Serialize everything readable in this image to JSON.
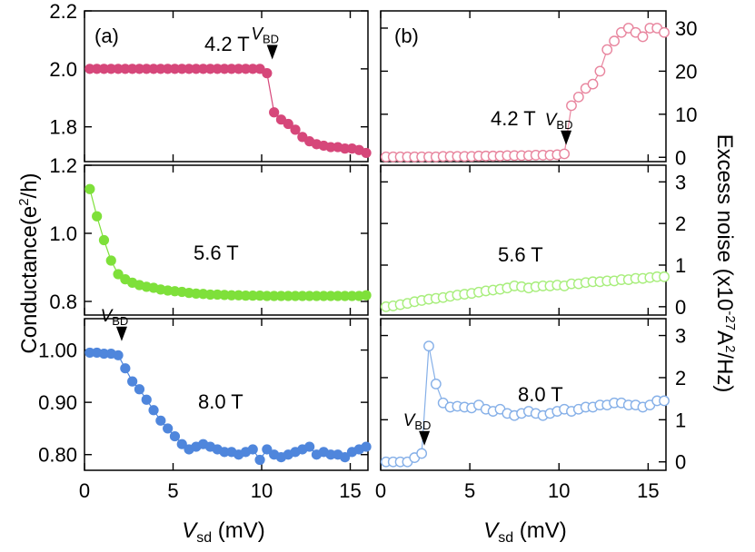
{
  "chart_data": [
    {
      "type": "scatter",
      "panel": "(a)",
      "field_label": "4.2 T",
      "xlabel": "V_sd (mV)",
      "ylabel": "Conductance (e^2/h)",
      "xlim": [
        0,
        16
      ],
      "ylim": [
        1.68,
        2.2
      ],
      "yticks": [
        1.8,
        2.0,
        2.2
      ],
      "ytick_labels": [
        "1.8",
        "2.0",
        "2.2"
      ],
      "color": "#d6477a",
      "marker": "filled-circle",
      "vbd": {
        "label": "V",
        "sub": "BD",
        "x": 10.6,
        "y": 2.02
      },
      "x": [
        0.3,
        0.7,
        1.1,
        1.5,
        1.9,
        2.3,
        2.7,
        3.1,
        3.5,
        3.9,
        4.3,
        4.7,
        5.1,
        5.5,
        5.9,
        6.3,
        6.7,
        7.1,
        7.5,
        7.9,
        8.3,
        8.7,
        9.1,
        9.5,
        9.9,
        10.3,
        10.7,
        11.1,
        11.5,
        11.9,
        12.3,
        12.7,
        13.1,
        13.5,
        13.9,
        14.3,
        14.7,
        15.1,
        15.5,
        15.9
      ],
      "y": [
        2.0,
        2.0,
        2.0,
        2.0,
        2.0,
        2.0,
        2.0,
        2.0,
        2.0,
        2.0,
        2.0,
        2.0,
        2.0,
        2.0,
        2.0,
        2.0,
        2.0,
        2.0,
        2.0,
        2.0,
        2.0,
        2.0,
        2.0,
        2.0,
        2.0,
        1.985,
        1.85,
        1.825,
        1.81,
        1.79,
        1.765,
        1.75,
        1.74,
        1.735,
        1.73,
        1.73,
        1.725,
        1.725,
        1.72,
        1.71
      ]
    },
    {
      "type": "scatter",
      "panel": "",
      "field_label": "5.6 T",
      "xlabel": "V_sd (mV)",
      "ylabel": "Conductance (e^2/h)",
      "xlim": [
        0,
        16
      ],
      "ylim": [
        0.76,
        1.2
      ],
      "yticks": [
        0.8,
        1.0,
        1.2
      ],
      "ytick_labels": [
        "0.8",
        "1.0",
        "1.2"
      ],
      "color": "#7ee03a",
      "marker": "filled-circle",
      "x": [
        0.3,
        0.7,
        1.1,
        1.5,
        1.9,
        2.3,
        2.7,
        3.1,
        3.5,
        3.9,
        4.3,
        4.7,
        5.1,
        5.5,
        5.9,
        6.3,
        6.7,
        7.1,
        7.5,
        7.9,
        8.3,
        8.7,
        9.1,
        9.5,
        9.9,
        10.3,
        10.7,
        11.1,
        11.5,
        11.9,
        12.3,
        12.7,
        13.1,
        13.5,
        13.9,
        14.3,
        14.7,
        15.1,
        15.5,
        15.9
      ],
      "y": [
        1.13,
        1.05,
        0.98,
        0.92,
        0.88,
        0.865,
        0.855,
        0.848,
        0.843,
        0.84,
        0.835,
        0.832,
        0.83,
        0.828,
        0.825,
        0.823,
        0.822,
        0.82,
        0.82,
        0.819,
        0.818,
        0.818,
        0.817,
        0.817,
        0.817,
        0.816,
        0.816,
        0.816,
        0.816,
        0.816,
        0.816,
        0.816,
        0.816,
        0.816,
        0.816,
        0.816,
        0.816,
        0.816,
        0.816,
        0.818
      ]
    },
    {
      "type": "scatter",
      "panel": "",
      "field_label": "8.0 T",
      "xlabel": "V_sd (mV)",
      "ylabel": "Conductance (e^2/h)",
      "xlim": [
        0,
        16
      ],
      "ylim": [
        0.77,
        1.06
      ],
      "yticks": [
        0.8,
        0.9,
        1.0
      ],
      "ytick_labels": [
        "0.80",
        "0.90",
        "1.00"
      ],
      "xticks": [
        0,
        5,
        10,
        15
      ],
      "xtick_labels": [
        "0",
        "5",
        "10",
        "15"
      ],
      "color": "#4f86dc",
      "marker": "filled-circle",
      "vbd": {
        "label": "V",
        "sub": "BD",
        "x": 2.1,
        "y": 1.01
      },
      "x": [
        0.3,
        0.7,
        1.1,
        1.5,
        1.9,
        2.3,
        2.7,
        3.1,
        3.5,
        3.9,
        4.3,
        4.7,
        5.1,
        5.5,
        5.9,
        6.3,
        6.7,
        7.1,
        7.5,
        7.9,
        8.3,
        8.7,
        9.1,
        9.5,
        9.9,
        10.3,
        10.7,
        11.1,
        11.5,
        11.9,
        12.3,
        12.7,
        13.1,
        13.5,
        13.9,
        14.3,
        14.7,
        15.1,
        15.5,
        15.9
      ],
      "y": [
        0.995,
        0.995,
        0.993,
        0.993,
        0.99,
        0.965,
        0.94,
        0.925,
        0.905,
        0.885,
        0.865,
        0.85,
        0.835,
        0.82,
        0.81,
        0.815,
        0.82,
        0.815,
        0.81,
        0.805,
        0.805,
        0.8,
        0.805,
        0.81,
        0.79,
        0.81,
        0.8,
        0.795,
        0.8,
        0.805,
        0.81,
        0.815,
        0.8,
        0.805,
        0.8,
        0.8,
        0.795,
        0.805,
        0.81,
        0.815
      ]
    },
    {
      "type": "scatter",
      "panel": "(b)",
      "field_label": "4.2 T",
      "xlabel": "V_sd (mV)",
      "ylabel": "Excess noise (x10^-27 A^2/Hz)",
      "xlim": [
        0,
        16
      ],
      "ylim": [
        -1,
        34
      ],
      "yticks": [
        0,
        10,
        20,
        30
      ],
      "ytick_labels": [
        "0",
        "10",
        "20",
        "30"
      ],
      "color": "#e8859e",
      "marker": "open-circle",
      "vbd": {
        "label": "V",
        "sub": "BD",
        "x": 10.4,
        "y": 2.0
      },
      "x": [
        0.3,
        0.7,
        1.1,
        1.5,
        1.9,
        2.3,
        2.7,
        3.1,
        3.5,
        3.9,
        4.3,
        4.7,
        5.1,
        5.5,
        5.9,
        6.3,
        6.7,
        7.1,
        7.5,
        7.9,
        8.3,
        8.7,
        9.1,
        9.5,
        9.9,
        10.3,
        10.7,
        11.1,
        11.5,
        11.9,
        12.3,
        12.7,
        13.1,
        13.5,
        13.9,
        14.3,
        14.7,
        15.1,
        15.5,
        15.9
      ],
      "y": [
        0.1,
        0.1,
        0.1,
        0.1,
        0.1,
        0.1,
        0.1,
        0.1,
        0.2,
        0.2,
        0.2,
        0.2,
        0.2,
        0.3,
        0.3,
        0.3,
        0.3,
        0.4,
        0.4,
        0.4,
        0.4,
        0.5,
        0.5,
        0.5,
        0.6,
        0.8,
        12,
        14,
        16,
        17,
        20,
        25,
        27,
        29,
        30,
        29,
        28,
        30,
        30,
        29
      ]
    },
    {
      "type": "scatter",
      "panel": "",
      "field_label": "5.6 T",
      "xlabel": "V_sd (mV)",
      "ylabel": "Excess noise (x10^-27 A^2/Hz)",
      "xlim": [
        0,
        16
      ],
      "ylim": [
        -0.2,
        3.4
      ],
      "yticks": [
        0,
        1,
        2,
        3
      ],
      "ytick_labels": [
        "0",
        "1",
        "2",
        "3"
      ],
      "color": "#a8ee7c",
      "marker": "open-circle",
      "x": [
        0.3,
        0.7,
        1.1,
        1.5,
        1.9,
        2.3,
        2.7,
        3.1,
        3.5,
        3.9,
        4.3,
        4.7,
        5.1,
        5.5,
        5.9,
        6.3,
        6.7,
        7.1,
        7.5,
        7.9,
        8.3,
        8.7,
        9.1,
        9.5,
        9.9,
        10.3,
        10.7,
        11.1,
        11.5,
        11.9,
        12.3,
        12.7,
        13.1,
        13.5,
        13.9,
        14.3,
        14.7,
        15.1,
        15.5,
        15.9
      ],
      "y": [
        0.0,
        0.02,
        0.05,
        0.08,
        0.12,
        0.15,
        0.18,
        0.2,
        0.22,
        0.25,
        0.28,
        0.3,
        0.32,
        0.35,
        0.38,
        0.4,
        0.42,
        0.45,
        0.5,
        0.48,
        0.45,
        0.48,
        0.5,
        0.5,
        0.52,
        0.5,
        0.55,
        0.55,
        0.58,
        0.6,
        0.6,
        0.62,
        0.62,
        0.65,
        0.65,
        0.68,
        0.68,
        0.7,
        0.72,
        0.72
      ]
    },
    {
      "type": "scatter",
      "panel": "",
      "field_label": "8.0 T",
      "xlabel": "V_sd (mV)",
      "ylabel": "Excess noise (x10^-27 A^2/Hz)",
      "xlim": [
        0,
        16
      ],
      "ylim": [
        -0.2,
        3.4
      ],
      "yticks": [
        0,
        1,
        2,
        3
      ],
      "ytick_labels": [
        "0",
        "1",
        "2",
        "3"
      ],
      "xticks": [
        0,
        5,
        10,
        15
      ],
      "xtick_labels": [
        "0",
        "5",
        "10",
        "15"
      ],
      "color": "#86b0e8",
      "marker": "open-circle",
      "vbd": {
        "label": "V",
        "sub": "BD",
        "x": 2.45,
        "y": 0.3
      },
      "x": [
        0.3,
        0.7,
        1.1,
        1.5,
        1.9,
        2.3,
        2.7,
        3.1,
        3.5,
        3.9,
        4.3,
        4.7,
        5.1,
        5.5,
        5.9,
        6.3,
        6.7,
        7.1,
        7.5,
        7.9,
        8.3,
        8.7,
        9.1,
        9.5,
        9.9,
        10.3,
        10.7,
        11.1,
        11.5,
        11.9,
        12.3,
        12.7,
        13.1,
        13.5,
        13.9,
        14.3,
        14.7,
        15.1,
        15.5,
        15.9
      ],
      "y": [
        0.0,
        0.0,
        0.0,
        0.0,
        0.1,
        0.2,
        2.75,
        1.85,
        1.4,
        1.3,
        1.32,
        1.3,
        1.28,
        1.35,
        1.25,
        1.2,
        1.25,
        1.15,
        1.1,
        1.15,
        1.2,
        1.15,
        1.1,
        1.15,
        1.2,
        1.25,
        1.2,
        1.25,
        1.3,
        1.3,
        1.35,
        1.35,
        1.4,
        1.4,
        1.35,
        1.35,
        1.3,
        1.35,
        1.45,
        1.45
      ]
    }
  ],
  "axis_titles": {
    "left_ylabel": "Conductance(e",
    "left_ylabel_sup": "2",
    "left_ylabel_tail": "/h)",
    "right_ylabel": "Excess noise (x10",
    "right_ylabel_sup1": "-27",
    "right_ylabel_mid": "A",
    "right_ylabel_sup2": "2",
    "right_ylabel_tail": "/Hz)",
    "xlabel_main": "V",
    "xlabel_sub": "sd",
    "xlabel_unit": " (mV)"
  }
}
